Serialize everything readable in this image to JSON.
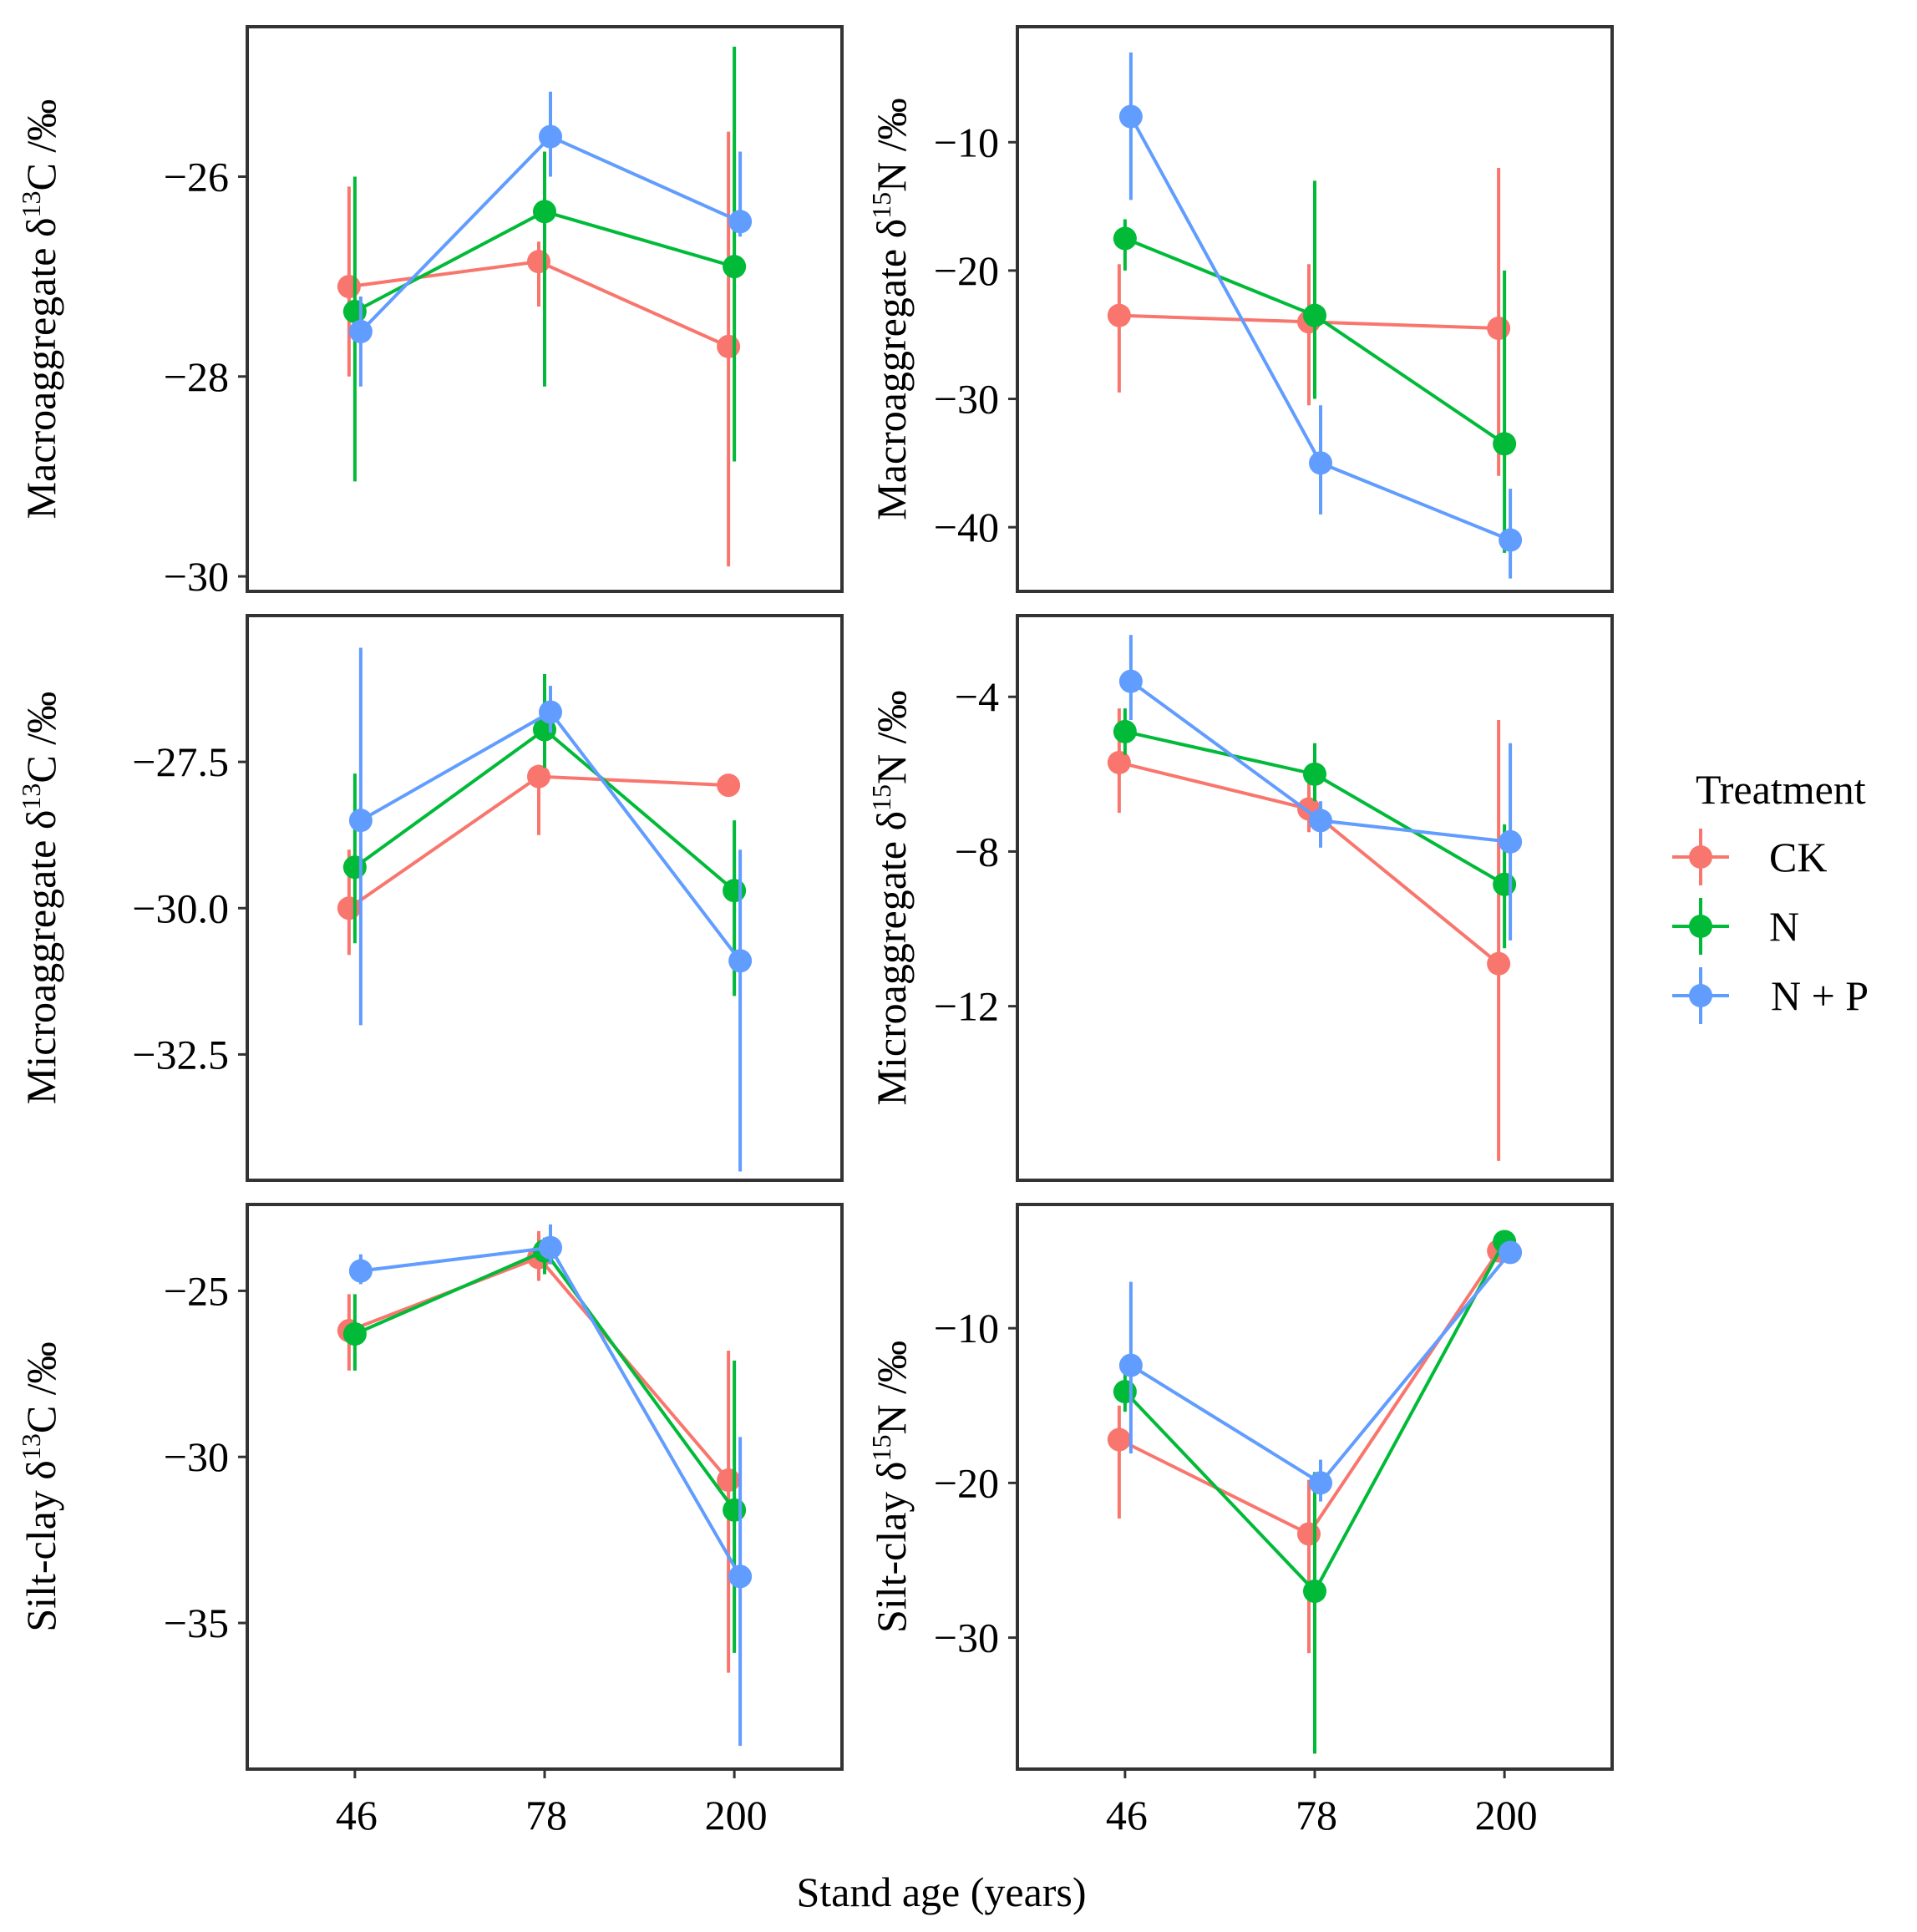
{
  "chart_data": {
    "type": "line",
    "x_axis_title": "Stand age (years)",
    "x_categories": [
      "46",
      "78",
      "200"
    ],
    "legend": {
      "title": "Treatment",
      "entries": [
        {
          "name": "CK",
          "color": "#F8766D"
        },
        {
          "name": "N",
          "color": "#00BA38"
        },
        {
          "name": "N + P",
          "color": "#619CFF"
        }
      ]
    },
    "panels": [
      {
        "id": "macro-c",
        "ylabel_prefix": "Macroaggregate δ",
        "ylabel_sup": "13",
        "ylabel_suffix": "C /‰",
        "ylim": [
          -30.15,
          -24.5
        ],
        "yticks": [
          {
            "value": -26,
            "label": "−26"
          },
          {
            "value": -28,
            "label": "−28"
          },
          {
            "value": -30,
            "label": "−30"
          }
        ],
        "series": [
          {
            "name": "CK",
            "values": [
              -27.1,
              -26.85,
              -27.7
            ],
            "lower": [
              -28.0,
              -27.3,
              -29.9
            ],
            "upper": [
              -26.1,
              -26.65,
              -25.55
            ]
          },
          {
            "name": "N",
            "values": [
              -27.35,
              -26.35,
              -26.9
            ],
            "lower": [
              -29.05,
              -28.1,
              -28.85
            ],
            "upper": [
              -26.0,
              -25.75,
              -24.7
            ]
          },
          {
            "name": "N + P",
            "values": [
              -27.55,
              -25.6,
              -26.45
            ],
            "lower": [
              -28.1,
              -26.0,
              -26.6
            ],
            "upper": [
              -27.2,
              -25.15,
              -25.75
            ]
          }
        ]
      },
      {
        "id": "macro-n",
        "ylabel_prefix": "Macroaggregate δ",
        "ylabel_sup": "15",
        "ylabel_suffix": "N /‰",
        "ylim": [
          -45.0,
          -1.0
        ],
        "yticks": [
          {
            "value": -10,
            "label": "−10"
          },
          {
            "value": -20,
            "label": "−20"
          },
          {
            "value": -30,
            "label": "−30"
          },
          {
            "value": -40,
            "label": "−40"
          }
        ],
        "series": [
          {
            "name": "CK",
            "values": [
              -23.5,
              -24.0,
              -24.5
            ],
            "lower": [
              -29.5,
              -30.5,
              -36.0
            ],
            "upper": [
              -19.5,
              -19.5,
              -12.0
            ]
          },
          {
            "name": "N",
            "values": [
              -17.5,
              -23.5,
              -33.5
            ],
            "lower": [
              -20.0,
              -30.0,
              -42.0
            ],
            "upper": [
              -16.0,
              -13.0,
              -20.0
            ]
          },
          {
            "name": "N + P",
            "values": [
              -8.0,
              -35.0,
              -41.0
            ],
            "lower": [
              -14.5,
              -39.0,
              -44.0
            ],
            "upper": [
              -3.0,
              -30.5,
              -37.0
            ]
          }
        ]
      },
      {
        "id": "micro-c",
        "ylabel_prefix": "Microaggregate δ",
        "ylabel_sup": "13",
        "ylabel_suffix": "C /‰",
        "ylim": [
          -34.65,
          -25.0
        ],
        "yticks": [
          {
            "value": -27.5,
            "label": "−27.5"
          },
          {
            "value": -30.0,
            "label": "−30.0"
          },
          {
            "value": -32.5,
            "label": "−32.5"
          }
        ],
        "series": [
          {
            "name": "CK",
            "values": [
              -30.0,
              -27.75,
              -27.9
            ],
            "lower": [
              -30.8,
              -28.75,
              -27.9
            ],
            "upper": [
              -29.0,
              -27.55,
              -27.9
            ]
          },
          {
            "name": "N",
            "values": [
              -29.3,
              -26.95,
              -29.7
            ],
            "lower": [
              -30.6,
              -27.6,
              -31.5
            ],
            "upper": [
              -27.7,
              -26.0,
              -28.5
            ]
          },
          {
            "name": "N + P",
            "values": [
              -28.5,
              -26.65,
              -30.9
            ],
            "lower": [
              -32.0,
              -27.0,
              -34.5
            ],
            "upper": [
              -25.55,
              -26.2,
              -29.0
            ]
          }
        ]
      },
      {
        "id": "micro-n",
        "ylabel_prefix": "Microaggregate δ",
        "ylabel_sup": "15",
        "ylabel_suffix": "N /‰",
        "ylim": [
          -16.5,
          -1.9
        ],
        "yticks": [
          {
            "value": -4,
            "label": "−4"
          },
          {
            "value": -8,
            "label": "−8"
          },
          {
            "value": -12,
            "label": "−12"
          }
        ],
        "series": [
          {
            "name": "CK",
            "values": [
              -5.7,
              -6.9,
              -10.9
            ],
            "lower": [
              -7.0,
              -7.5,
              -16.0
            ],
            "upper": [
              -4.3,
              -6.2,
              -4.6
            ]
          },
          {
            "name": "N",
            "values": [
              -4.9,
              -6.0,
              -8.85
            ],
            "lower": [
              -5.5,
              -6.7,
              -10.5
            ],
            "upper": [
              -4.3,
              -5.2,
              -7.3
            ]
          },
          {
            "name": "N + P",
            "values": [
              -3.6,
              -7.2,
              -7.75
            ],
            "lower": [
              -4.6,
              -7.9,
              -10.3
            ],
            "upper": [
              -2.4,
              -6.7,
              -5.2
            ]
          }
        ]
      },
      {
        "id": "silt-c",
        "ylabel_prefix": "Silt-clay δ",
        "ylabel_sup": "13",
        "ylabel_suffix": "C /‰",
        "ylim": [
          -39.4,
          -22.4
        ],
        "yticks": [
          {
            "value": -25,
            "label": "−25"
          },
          {
            "value": -30,
            "label": "−30"
          },
          {
            "value": -35,
            "label": "−35"
          }
        ],
        "series": [
          {
            "name": "CK",
            "values": [
              -26.2,
              -24.0,
              -30.7
            ],
            "lower": [
              -27.4,
              -24.7,
              -36.5
            ],
            "upper": [
              -25.1,
              -23.2,
              -26.8
            ]
          },
          {
            "name": "N",
            "values": [
              -26.3,
              -23.8,
              -31.6
            ],
            "lower": [
              -27.4,
              -24.5,
              -35.9
            ],
            "upper": [
              -25.1,
              -23.4,
              -27.1
            ]
          },
          {
            "name": "N + P",
            "values": [
              -24.4,
              -23.7,
              -33.6
            ],
            "lower": [
              -24.8,
              -24.2,
              -38.7
            ],
            "upper": [
              -23.9,
              -23.0,
              -29.4
            ]
          }
        ]
      },
      {
        "id": "silt-n",
        "ylabel_prefix": "Silt-clay δ",
        "ylabel_sup": "15",
        "ylabel_suffix": "N /‰",
        "ylim": [
          -38.5,
          -2.0
        ],
        "yticks": [
          {
            "value": -10,
            "label": "−10"
          },
          {
            "value": -20,
            "label": "−20"
          },
          {
            "value": -30,
            "label": "−30"
          }
        ],
        "series": [
          {
            "name": "CK",
            "values": [
              -17.2,
              -23.3,
              -5.0
            ],
            "lower": [
              -22.3,
              -31.0,
              -5.5
            ],
            "upper": [
              -15.0,
              -19.8,
              -4.6
            ]
          },
          {
            "name": "N",
            "values": [
              -14.1,
              -27.0,
              -4.4
            ],
            "lower": [
              -15.4,
              -37.5,
              -4.8
            ],
            "upper": [
              -12.8,
              -19.3,
              -4.0
            ]
          },
          {
            "name": "N + P",
            "values": [
              -12.4,
              -20.0,
              -5.1
            ],
            "lower": [
              -18.1,
              -21.2,
              -5.6
            ],
            "upper": [
              -7.0,
              -18.5,
              -4.6
            ]
          }
        ]
      }
    ]
  }
}
